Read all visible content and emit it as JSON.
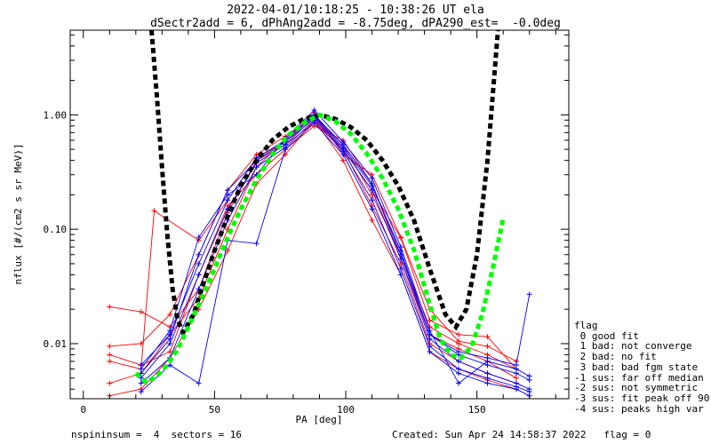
{
  "header": {
    "title_line1": "2022-04-01/10:18:25 - 10:38:26 UT ela",
    "title_line2": "dSectr2add = 6, dPhAng2add = -8.75deg, dPA290_est=  -0.0deg"
  },
  "legend": {
    "title": "flag",
    "entries": [
      " 0 good fit",
      " 1 bad: not converge",
      " 2 bad: no fit",
      " 3 bad: bad fgm state",
      "-1 sus: far off median",
      "-2 sus: not symmetric",
      "-3 sus: fit peak off 90",
      "-4 sus: peaks high var"
    ]
  },
  "footer": {
    "left": "nspininsum =  4  sectors = 16",
    "right": "Created: Sun Apr 24 14:58:37 2022   flag = 0"
  },
  "colors": {
    "red_series": "#ff0000",
    "blue_series": "#0000ff",
    "black_fit": "#000000",
    "green_fit": "#00ff00"
  },
  "chart_data": {
    "type": "line",
    "xlabel": "PA [deg]",
    "ylabel": "nflux [#/(cm2 s sr MeV)]",
    "xlim": [
      -5,
      185
    ],
    "ylim": [
      0.0033,
      5.5
    ],
    "yscale": "log",
    "xticks": [
      0,
      50,
      100,
      150
    ],
    "xtick_labels": [
      "0",
      "50",
      "100",
      "150"
    ],
    "yticks": [
      0.01,
      0.1,
      1.0
    ],
    "ytick_labels": [
      "0.01",
      "0.10",
      "1.00"
    ],
    "grid": false,
    "series": [
      {
        "color": "red",
        "x": [
          10,
          22,
          33,
          44,
          55,
          66,
          77,
          88,
          99,
          110,
          121,
          132,
          143,
          154,
          165
        ],
        "y": [
          0.0095,
          0.01,
          0.018,
          0.06,
          0.22,
          0.45,
          0.65,
          0.95,
          0.55,
          0.2,
          0.06,
          0.014,
          0.01,
          0.008,
          0.006
        ]
      },
      {
        "color": "red",
        "x": [
          10,
          22,
          33,
          44,
          55,
          66,
          77,
          88,
          99,
          110,
          121,
          132,
          143,
          154,
          165
        ],
        "y": [
          0.021,
          0.019,
          0.014,
          0.03,
          0.14,
          0.4,
          0.55,
          0.85,
          0.5,
          0.16,
          0.05,
          0.01,
          0.007,
          0.0055,
          0.0045
        ]
      },
      {
        "color": "red",
        "x": [
          10,
          22,
          33,
          44,
          55,
          66,
          77,
          88,
          99,
          110,
          121,
          132,
          143,
          154,
          165
        ],
        "y": [
          0.008,
          0.0065,
          0.0085,
          0.04,
          0.16,
          0.3,
          0.5,
          0.8,
          0.6,
          0.25,
          0.055,
          0.012,
          0.009,
          0.007,
          0.005
        ]
      },
      {
        "color": "red",
        "x": [
          10,
          22,
          33,
          44,
          55,
          66,
          77,
          88,
          99,
          110,
          121,
          132,
          143,
          154,
          165
        ],
        "y": [
          0.0045,
          0.0055,
          0.012,
          0.025,
          0.1,
          0.35,
          0.6,
          1.05,
          0.45,
          0.3,
          0.085,
          0.02,
          0.0105,
          0.0095,
          0.007
        ]
      },
      {
        "color": "red",
        "x": [
          10,
          22,
          33,
          44,
          55,
          66,
          77,
          88,
          99,
          110,
          121,
          132,
          143,
          154,
          165
        ],
        "y": [
          0.0035,
          0.004,
          0.0075,
          0.02,
          0.065,
          0.25,
          0.45,
          0.9,
          0.4,
          0.12,
          0.04,
          0.0085,
          0.006,
          0.0048,
          0.004
        ]
      },
      {
        "color": "red",
        "x": [
          10,
          22,
          27,
          44,
          55,
          66,
          77,
          88,
          99,
          110,
          121,
          132,
          143,
          154,
          165
        ],
        "y": [
          0.007,
          0.006,
          0.145,
          0.08,
          0.18,
          0.42,
          0.58,
          0.92,
          0.5,
          0.22,
          0.084,
          0.016,
          0.012,
          0.0115,
          0.006
        ]
      },
      {
        "color": "blue",
        "x": [
          22,
          33,
          44,
          55,
          66,
          77,
          88,
          99,
          110,
          121,
          132,
          143,
          154,
          165,
          170
        ],
        "y": [
          0.0065,
          0.012,
          0.05,
          0.18,
          0.42,
          0.6,
          1.0,
          0.55,
          0.25,
          0.06,
          0.012,
          0.008,
          0.0065,
          0.0055,
          0.0048
        ]
      },
      {
        "color": "blue",
        "x": [
          22,
          33,
          44,
          55,
          66,
          77,
          88,
          99,
          110,
          121,
          132,
          143,
          154,
          165,
          170
        ],
        "y": [
          0.005,
          0.01,
          0.04,
          0.15,
          0.38,
          0.55,
          0.95,
          0.5,
          0.22,
          0.055,
          0.011,
          0.007,
          0.0055,
          0.0045,
          0.004
        ]
      },
      {
        "color": "blue",
        "x": [
          22,
          33,
          44,
          55,
          66,
          77,
          88,
          99,
          110,
          121,
          132,
          143,
          154,
          165,
          170
        ],
        "y": [
          0.0045,
          0.0075,
          0.03,
          0.12,
          0.35,
          0.52,
          0.9,
          0.48,
          0.18,
          0.045,
          0.0095,
          0.006,
          0.005,
          0.0042,
          0.0038
        ]
      },
      {
        "color": "blue",
        "x": [
          22,
          33,
          44,
          55,
          66,
          77,
          88,
          99,
          110,
          121,
          132,
          143,
          154,
          165,
          170
        ],
        "y": [
          0.006,
          0.013,
          0.085,
          0.2,
          0.3,
          0.62,
          1.1,
          0.58,
          0.28,
          0.07,
          0.013,
          0.0045,
          0.007,
          0.006,
          0.0052
        ]
      },
      {
        "color": "blue",
        "x": [
          22,
          33,
          44,
          55,
          66,
          77,
          88,
          99,
          110,
          121,
          132,
          143,
          154,
          165,
          170
        ],
        "y": [
          0.0038,
          0.0065,
          0.0045,
          0.08,
          0.075,
          0.5,
          0.85,
          0.45,
          0.15,
          0.04,
          0.0085,
          0.0055,
          0.0045,
          0.004,
          0.0035
        ]
      },
      {
        "color": "blue",
        "x": [
          22,
          33,
          44,
          55,
          66,
          77,
          88,
          99,
          110,
          121,
          132,
          143,
          154,
          165,
          170
        ],
        "y": [
          0.0055,
          0.011,
          0.06,
          0.22,
          0.4,
          0.58,
          0.98,
          0.52,
          0.24,
          0.065,
          0.012,
          0.0085,
          0.0075,
          0.0065,
          0.027
        ]
      }
    ],
    "fit_curves": [
      {
        "color": "black",
        "style": "dashed",
        "x": [
          26,
          28,
          30,
          32,
          34,
          36,
          38,
          42,
          46,
          50,
          55,
          60,
          66,
          72,
          78,
          84,
          90,
          96,
          102,
          108,
          114,
          120,
          126,
          132,
          138,
          142,
          146,
          150,
          154,
          158
        ],
        "y": [
          5.5,
          1.5,
          0.35,
          0.09,
          0.03,
          0.016,
          0.0125,
          0.018,
          0.035,
          0.065,
          0.13,
          0.24,
          0.4,
          0.6,
          0.78,
          0.92,
          1.0,
          0.92,
          0.78,
          0.6,
          0.4,
          0.24,
          0.12,
          0.045,
          0.018,
          0.014,
          0.02,
          0.06,
          0.4,
          5.5
        ]
      },
      {
        "color": "green",
        "style": "dashed",
        "x": [
          20,
          24,
          28,
          32,
          36,
          40,
          44,
          48,
          52,
          56,
          60,
          66,
          72,
          78,
          84,
          90,
          96,
          102,
          108,
          114,
          120,
          126,
          132,
          136,
          140,
          144,
          148,
          152,
          156,
          160
        ],
        "y": [
          0.0055,
          0.0046,
          0.0052,
          0.0065,
          0.009,
          0.014,
          0.022,
          0.035,
          0.058,
          0.095,
          0.15,
          0.27,
          0.45,
          0.66,
          0.85,
          1.0,
          0.88,
          0.68,
          0.46,
          0.28,
          0.15,
          0.066,
          0.022,
          0.011,
          0.008,
          0.0075,
          0.0095,
          0.018,
          0.045,
          0.125
        ]
      }
    ]
  }
}
